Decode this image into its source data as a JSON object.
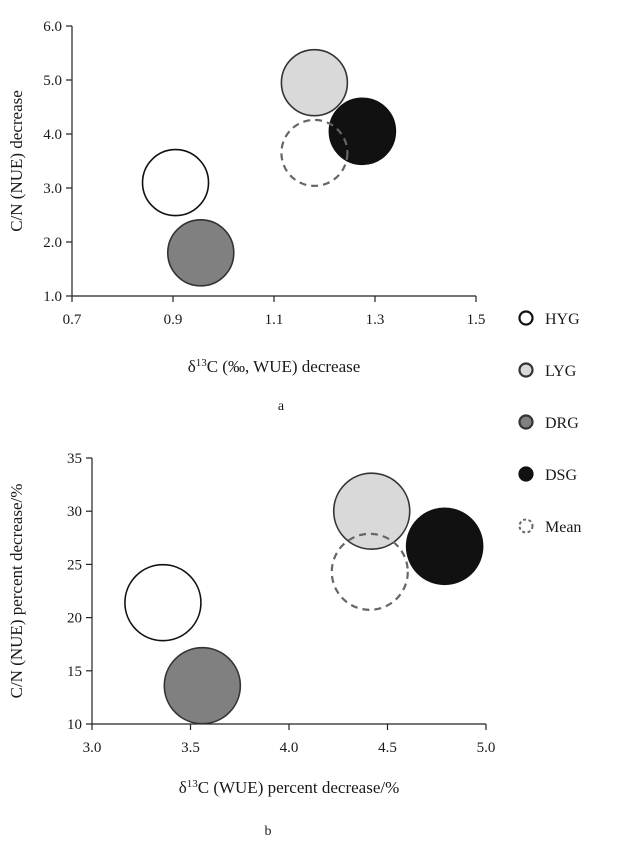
{
  "chart_data": [
    {
      "type": "scatter",
      "panel_label": "a",
      "title": "",
      "xlabel_prefix": "δ",
      "xlabel_sup": "13",
      "xlabel_rest": "C (‰, WUE) decrease",
      "ylabel": "C/N (NUE) decrease",
      "xlim": [
        0.7,
        1.5
      ],
      "ylim": [
        1.0,
        6.0
      ],
      "xticks": [
        "0.7",
        "0.9",
        "1.1",
        "1.3",
        "1.5"
      ],
      "yticks": [
        "1.0",
        "2.0",
        "3.0",
        "4.0",
        "5.0",
        "6.0"
      ],
      "grid": false,
      "series": [
        {
          "name": "HYG",
          "x": 0.905,
          "y": 3.1
        },
        {
          "name": "LYG",
          "x": 1.18,
          "y": 4.95
        },
        {
          "name": "DRG",
          "x": 0.955,
          "y": 1.8
        },
        {
          "name": "DSG",
          "x": 1.275,
          "y": 4.05
        },
        {
          "name": "Mean",
          "x": 1.18,
          "y": 3.65
        }
      ]
    },
    {
      "type": "scatter",
      "panel_label": "b",
      "title": "",
      "xlabel_prefix": "δ",
      "xlabel_sup": "13",
      "xlabel_rest": "C (WUE) percent decrease/%",
      "ylabel": "C/N (NUE) percent decrease/%",
      "xlim": [
        3.0,
        5.0
      ],
      "ylim": [
        10,
        35
      ],
      "xticks": [
        "3.0",
        "3.5",
        "4.0",
        "4.5",
        "5.0"
      ],
      "yticks": [
        "10",
        "15",
        "20",
        "25",
        "30",
        "35"
      ],
      "grid": false,
      "series": [
        {
          "name": "HYG",
          "x": 3.36,
          "y": 21.4
        },
        {
          "name": "LYG",
          "x": 4.42,
          "y": 30.0
        },
        {
          "name": "DRG",
          "x": 3.56,
          "y": 13.6
        },
        {
          "name": "DSG",
          "x": 4.79,
          "y": 26.7
        },
        {
          "name": "Mean",
          "x": 4.41,
          "y": 24.3
        }
      ]
    }
  ],
  "legend": {
    "placement": "right",
    "items": [
      {
        "name": "HYG",
        "fill": "#ffffff",
        "stroke": "#111111",
        "dashed": false
      },
      {
        "name": "LYG",
        "fill": "#d9d9d9",
        "stroke": "#333333",
        "dashed": false
      },
      {
        "name": "DRG",
        "fill": "#808080",
        "stroke": "#333333",
        "dashed": false
      },
      {
        "name": "DSG",
        "fill": "#111111",
        "stroke": "#111111",
        "dashed": false
      },
      {
        "name": "Mean",
        "fill": "none",
        "stroke": "#666666",
        "dashed": true
      }
    ]
  }
}
